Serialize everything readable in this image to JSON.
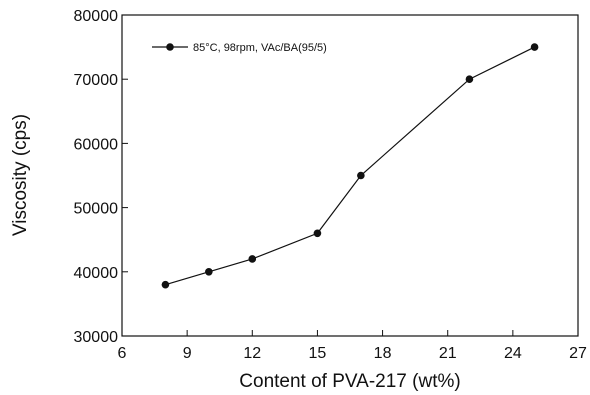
{
  "chart_data": {
    "type": "line",
    "title": "",
    "xlabel": "Content of PVA-217 (wt%)",
    "ylabel": "Viscosity (cps)",
    "xlim": [
      6,
      27
    ],
    "ylim": [
      30000,
      80000
    ],
    "xticks": [
      6,
      9,
      12,
      15,
      18,
      21,
      24,
      27
    ],
    "yticks": [
      30000,
      40000,
      50000,
      60000,
      70000,
      80000
    ],
    "grid": false,
    "legend_position": "top-left",
    "series": [
      {
        "name": "85°C, 98rpm, VAc/BA(95/5)",
        "marker": "filled-circle",
        "color": "#111111",
        "x": [
          8,
          10,
          12,
          15,
          17,
          22,
          25
        ],
        "y": [
          38000,
          40000,
          42000,
          46000,
          55000,
          70000,
          75000
        ]
      }
    ]
  }
}
